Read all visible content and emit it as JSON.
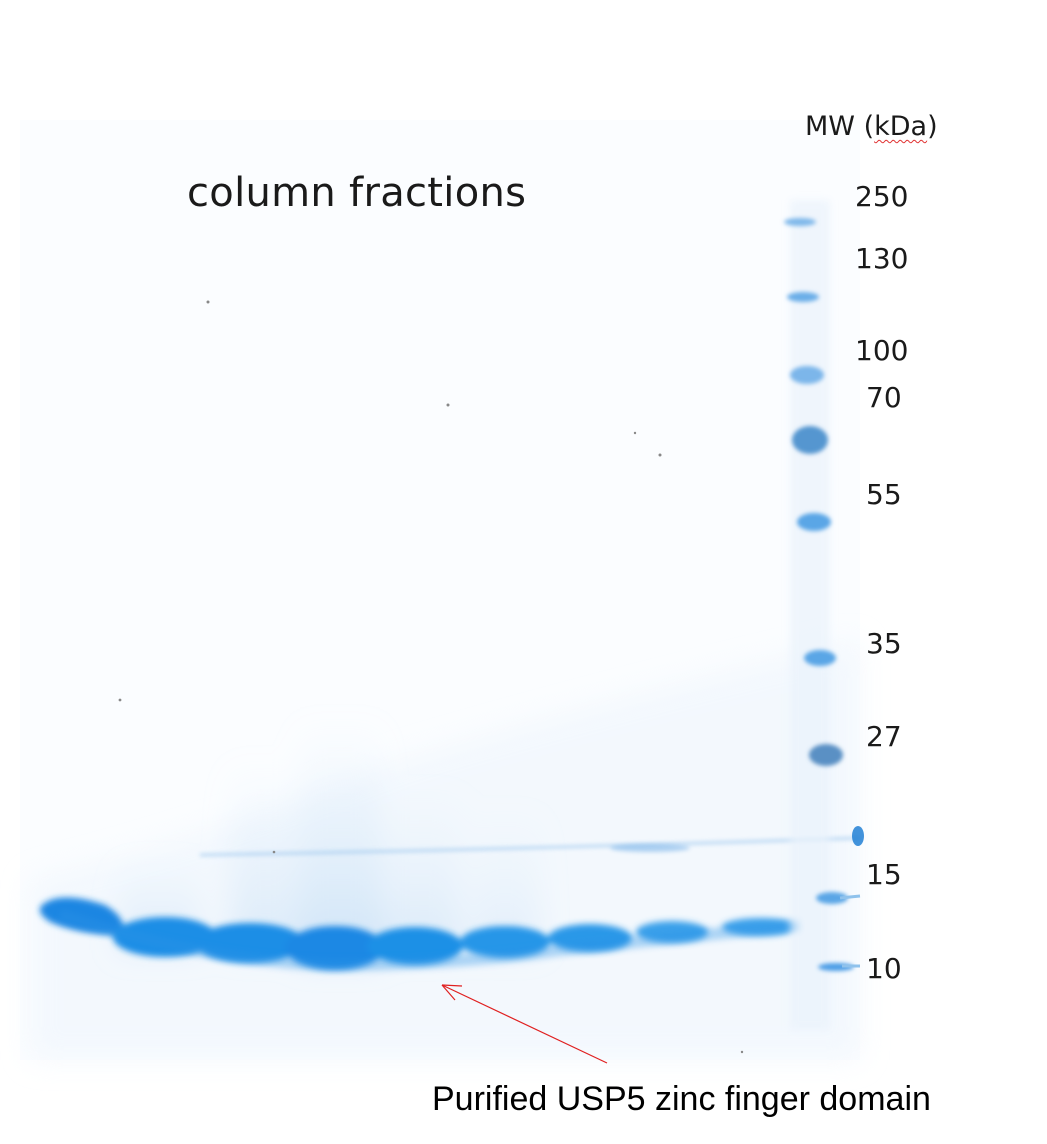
{
  "gel": {
    "title": "column fractions",
    "mw_header_prefix": "MW (",
    "mw_header_unit": "kDa",
    "mw_header_suffix": ")",
    "mw_markers": [
      "250",
      "130",
      "100",
      "70",
      "55",
      "35",
      "27",
      "15",
      "10"
    ],
    "annotation": "Purified USP5 zinc finger domain",
    "colors": {
      "background": "#ffffff",
      "stain": "#1e8ee6",
      "stain_dark": "#1478d2",
      "ladder": "#7fb8ea",
      "arrow": "#e02020"
    },
    "lane_count": 10
  }
}
